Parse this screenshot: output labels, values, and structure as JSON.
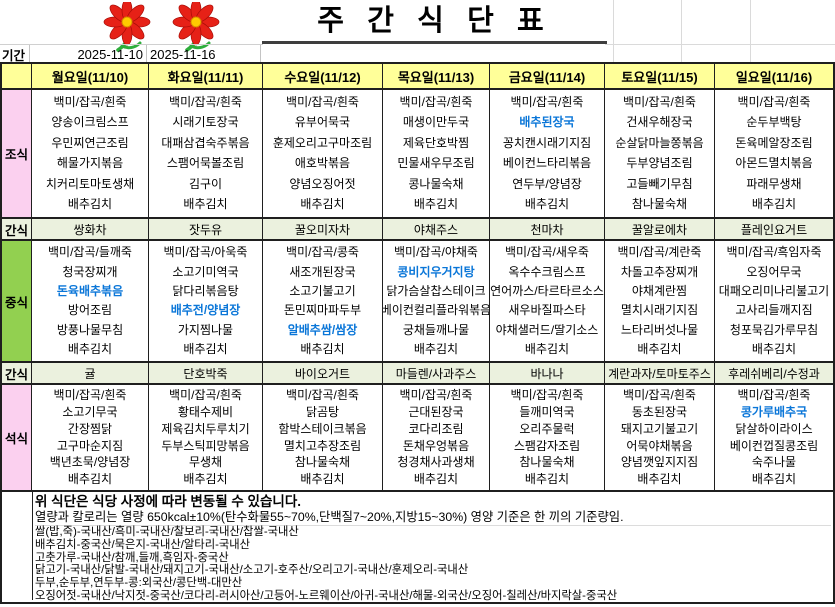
{
  "title": "주 간 식 단 표",
  "period": {
    "label": "기간",
    "start": "2025-11-10",
    "end": "2025-11-16"
  },
  "days": [
    "월요일(11/10)",
    "화요일(11/11)",
    "수요일(11/12)",
    "목요일(11/13)",
    "금요일(11/14)",
    "토요일(11/15)",
    "일요일(11/16)"
  ],
  "meal_rows": [
    {
      "label": "조식",
      "kind": "meal",
      "label_color": "pink",
      "cells": [
        [
          "백미/잡곡/흰죽",
          "양송이크림스프",
          "우민찌연근조림",
          "해물가지볶음",
          "치커리토마토생채",
          "배추김치"
        ],
        [
          "백미/잡곡/흰죽",
          "시래기토장국",
          "대패삼겹숙주볶음",
          "스팸어묵볼조림",
          "김구이",
          "배추김치"
        ],
        [
          "백미/잡곡/흰죽",
          "유부어묵국",
          "훈제오리고구마조림",
          "애호박볶음",
          "양념오징어젓",
          "배추김치"
        ],
        [
          "백미/잡곡/흰죽",
          "매생이만두국",
          "제육단호박찜",
          "민물새우무조림",
          "콩나물숙채",
          "배추김치"
        ],
        [
          "백미/잡곡/흰죽",
          "배추된장국",
          "꽁치캔시래기지짐",
          "베이컨느타리볶음",
          "연두부/양념장",
          "배추김치"
        ],
        [
          "백미/잡곡/흰죽",
          "건새우해장국",
          "순살닭마늘쫑볶음",
          "두부양념조림",
          "고들빼기무침",
          "참나물숙채"
        ],
        [
          "백미/잡곡/흰죽",
          "순두부백탕",
          "돈육메알장조림",
          "아몬드멸치볶음",
          "파래무생채",
          "배추김치"
        ]
      ]
    },
    {
      "label": "간식",
      "kind": "snack",
      "cells": [
        "쌍화차",
        "잣두유",
        "꿀오미자차",
        "야채주스",
        "천마차",
        "꿀알로에차",
        "플레인요거트"
      ]
    },
    {
      "label": "중식",
      "kind": "meal",
      "label_color": "green",
      "cells": [
        [
          "백미/잡곡/들깨죽",
          "청국장찌개",
          "돈육배추볶음",
          "방어조림",
          "방풍나물무침",
          "배추김치"
        ],
        [
          "백미/잡곡/아욱죽",
          "소고기미역국",
          "닭다리볶음탕",
          "배추전/양념장",
          "가지찜나물",
          "배추김치"
        ],
        [
          "백미/잡곡/콩죽",
          "새조개된장국",
          "소고기불고기",
          "돈민찌마파두부",
          "알배추쌈/쌈장",
          "배추김치"
        ],
        [
          "백미/잡곡/야채죽",
          "콩비지우거지탕",
          "닭가슴살찹스테이크",
          "베이컨컬리플라워볶음",
          "궁채들깨나물",
          "배추김치"
        ],
        [
          "백미/잡곡/새우죽",
          "옥수수크림스프",
          "연어까스/타르타르소스",
          "새우바질파스타",
          "야채샐러드/딸기소스",
          "배추김치"
        ],
        [
          "백미/잡곡/계란죽",
          "차돌고추장찌개",
          "야채계란찜",
          "멸치시래기지짐",
          "느타리버섯나물",
          "배추김치"
        ],
        [
          "백미/잡곡/흑임자죽",
          "오징어무국",
          "대패오리미나리불고기",
          "고사리들깨지짐",
          "청포묵김가루무침",
          "배추김치"
        ]
      ]
    },
    {
      "label": "간식",
      "kind": "snack",
      "cells": [
        "귤",
        "단호박죽",
        "바이오거트",
        "마들렌/사과주스",
        "바나나",
        "계란과자/토마토주스",
        "후레쉬베리/수정과"
      ]
    },
    {
      "label": "석식",
      "kind": "meal",
      "label_color": "pink",
      "cells": [
        [
          "백미/잡곡/흰죽",
          "소고기무국",
          "간장찜닭",
          "고구마순지짐",
          "백년초묵/양념장",
          "배추김치"
        ],
        [
          "백미/잡곡/흰죽",
          "황태수제비",
          "제육김치두루치기",
          "두부스틱피망볶음",
          "무생채",
          "배추김치"
        ],
        [
          "백미/잡곡/흰죽",
          "닭곰탕",
          "함박스테이크볶음",
          "멸치고추장조림",
          "참나물숙채",
          "배추김치"
        ],
        [
          "백미/잡곡/흰죽",
          "근대된장국",
          "코다리조림",
          "돈채우엉볶음",
          "청경채사과생채",
          "배추김치"
        ],
        [
          "백미/잡곡/흰죽",
          "들깨미역국",
          "오리주물럭",
          "스팸감자조림",
          "참나물숙채",
          "배추김치"
        ],
        [
          "백미/잡곡/흰죽",
          "동초된장국",
          "돼지고기불고기",
          "어묵야채볶음",
          "양념깻잎지지짐",
          "배추김치"
        ],
        [
          "백미/잡곡/흰죽",
          "콩가루배추국",
          "닭살하이라이스",
          "베이컨껍질콩조림",
          "숙주나물",
          "배추김치"
        ]
      ]
    }
  ],
  "highlight_items": [
    "배추된장국",
    "돈육배추볶음",
    "배추전/양념장",
    "알배추쌈/쌈장",
    "콩비지우거지탕",
    "콩가루배추국"
  ],
  "notes": {
    "line1": "위 식단은 식당 사정에 따라 변동될 수 있습니다.",
    "line2": "열량과 칼로리는 열량 650kcal±10%(탄수화물55~70%,단백질7~20%,지방15~30%) 영양 기준은 한 끼의 기준량임.",
    "origins": [
      "쌀(밥,죽)-국내산/흑미-국내산/찰보리-국내산/찹쌀-국내산",
      "배추김치-중국산/묵은지-국내산/알타리-국내산",
      "고춧가루-국내산/참깨,들깨,흑임자-중국산",
      "닭고기-국내산/닭발-국내산/돼지고기-국내산/소고기-호주산/오리고기-국내산/훈제오리-국내산",
      "두부,순두부,연두부-콩:외국산/콩단백-대만산",
      "오징어젓-국내산/낙지젓-중국산/코다리-러시아산/고등어-노르웨이산/아귀-국내산/해물-외국산/오징어-칠레산/바지락살-중국산"
    ]
  },
  "decorations": {
    "flower_icon": "flower-icon",
    "flower_count": 2
  },
  "colors": {
    "header_bg": "#FFFF99",
    "snack_bg": "#EBF1DE",
    "pink": "#FBD0EF",
    "green": "#92D050",
    "highlight": "#0A76D8",
    "flower_red": "#E62117",
    "flower_green": "#2EAE3C",
    "flower_center": "#FFCC00"
  }
}
